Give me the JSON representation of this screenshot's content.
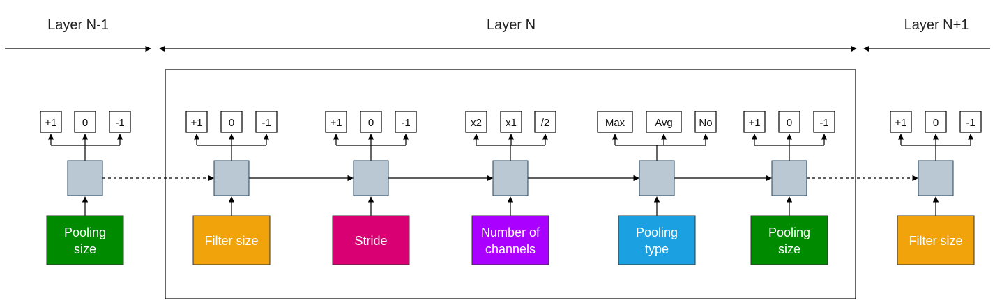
{
  "headers": {
    "prev": "Layer N-1",
    "current": "Layer N",
    "next": "Layer N+1"
  },
  "colors": {
    "node": "#bac8d3",
    "node_stroke": "#23445d",
    "pooling_size": "#008a00",
    "filter_size": "#f0a30a",
    "stride": "#d80073",
    "channels": "#aa00ff",
    "pooling_type": "#1ba1e2"
  },
  "units": [
    {
      "key": "u1",
      "options": [
        "+1",
        "0",
        "-1"
      ],
      "label": [
        "Pooling",
        "size"
      ],
      "color_key": "pooling_size"
    },
    {
      "key": "u2",
      "options": [
        "+1",
        "0",
        "-1"
      ],
      "label": [
        "Filter size"
      ],
      "color_key": "filter_size"
    },
    {
      "key": "u3",
      "options": [
        "+1",
        "0",
        "-1"
      ],
      "label": [
        "Stride"
      ],
      "color_key": "stride"
    },
    {
      "key": "u4",
      "options": [
        "x2",
        "x1",
        "/2"
      ],
      "label": [
        "Number of",
        "channels"
      ],
      "color_key": "channels"
    },
    {
      "key": "u5",
      "options": [
        "Max",
        "Avg",
        "No"
      ],
      "label": [
        "Pooling",
        "type"
      ],
      "color_key": "pooling_type"
    },
    {
      "key": "u6",
      "options": [
        "+1",
        "0",
        "-1"
      ],
      "label": [
        "Pooling",
        "size"
      ],
      "color_key": "pooling_size"
    },
    {
      "key": "u7",
      "options": [
        "+1",
        "0",
        "-1"
      ],
      "label": [
        "Filter size"
      ],
      "color_key": "filter_size"
    }
  ]
}
